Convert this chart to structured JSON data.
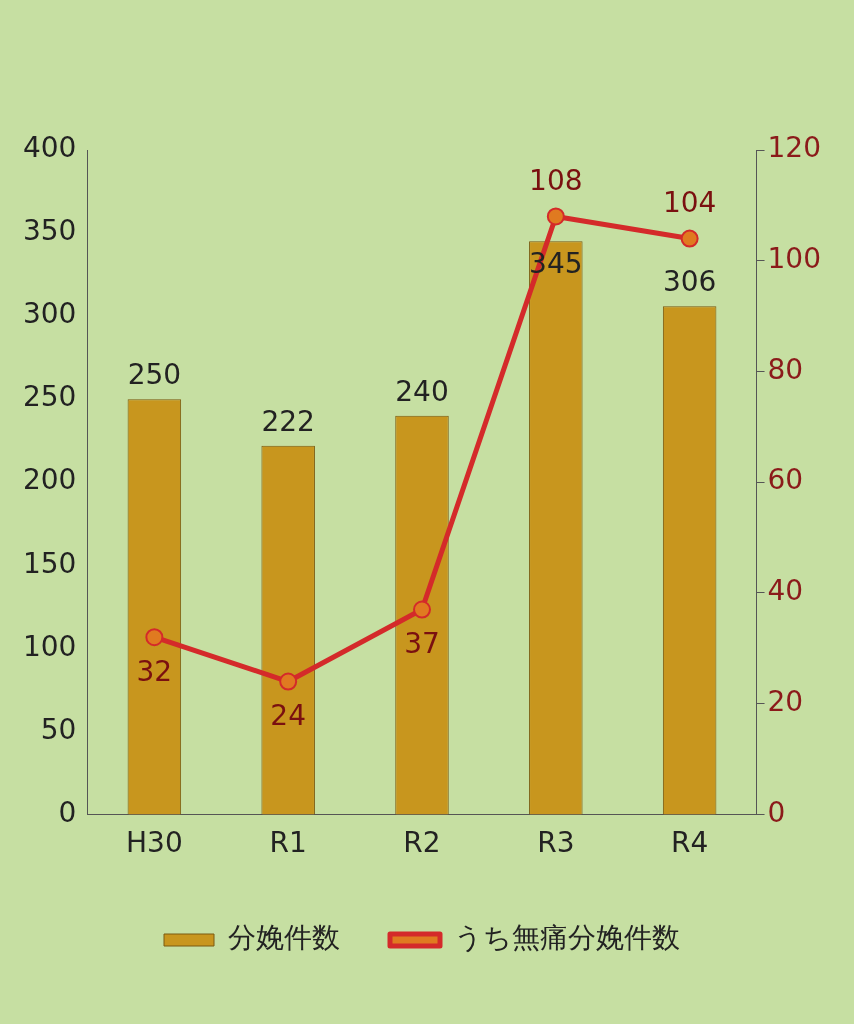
{
  "chart_data": {
    "type": "bar",
    "categories": [
      "H30",
      "R1",
      "R2",
      "R3",
      "R4"
    ],
    "series": [
      {
        "name": "分娩件数",
        "color": "#c8961e",
        "values": [
          250,
          222,
          240,
          345,
          306
        ]
      },
      {
        "name": "うち無痛分娩件数",
        "type": "line",
        "axis": "y2",
        "color": "#d42a2a",
        "values": [
          32,
          24,
          37,
          108,
          104
        ]
      }
    ],
    "ylim": [
      0,
      400
    ],
    "yticks": [
      0,
      50,
      100,
      150,
      200,
      250,
      300,
      350,
      400
    ],
    "y2lim": [
      0,
      120
    ],
    "y2ticks": [
      0,
      20,
      40,
      60,
      80,
      100,
      120
    ],
    "grid": false,
    "legend": "bottom",
    "marker": "circle",
    "line_style": "solid",
    "data_labels": true
  }
}
